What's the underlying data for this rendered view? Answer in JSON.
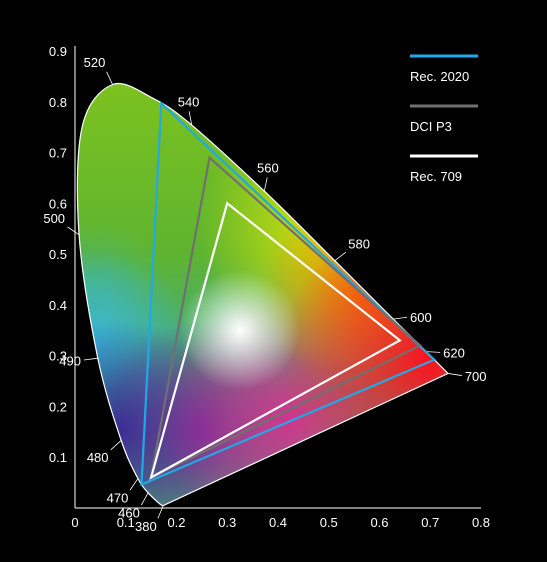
{
  "chart_data": {
    "type": "scatter",
    "title": "",
    "xlabel": "",
    "ylabel": "",
    "xlim": [
      0,
      0.8
    ],
    "ylim": [
      0,
      0.9
    ],
    "x_ticks": [
      "0",
      "0.1",
      "0.2",
      "0.3",
      "0.4",
      "0.5",
      "0.6",
      "0.7",
      "0.8"
    ],
    "y_ticks": [
      "0.1",
      "0.2",
      "0.3",
      "0.4",
      "0.5",
      "0.6",
      "0.7",
      "0.8",
      "0.9"
    ],
    "grid": false,
    "legend_position": "top-right",
    "spectral_locus": [
      [
        0.174,
        0.005
      ],
      [
        0.172,
        0.005
      ],
      [
        0.166,
        0.009
      ],
      [
        0.144,
        0.03
      ],
      [
        0.124,
        0.058
      ],
      [
        0.091,
        0.133
      ],
      [
        0.045,
        0.295
      ],
      [
        0.008,
        0.538
      ],
      [
        0.014,
        0.75
      ],
      [
        0.074,
        0.834
      ],
      [
        0.155,
        0.806
      ],
      [
        0.23,
        0.754
      ],
      [
        0.373,
        0.624
      ],
      [
        0.512,
        0.487
      ],
      [
        0.627,
        0.372
      ],
      [
        0.692,
        0.308
      ],
      [
        0.735,
        0.265
      ]
    ],
    "wavelength_labels": [
      {
        "label": "380",
        "x": 0.174,
        "y": 0.005
      },
      {
        "label": "460",
        "x": 0.144,
        "y": 0.03
      },
      {
        "label": "470",
        "x": 0.124,
        "y": 0.058
      },
      {
        "label": "480",
        "x": 0.091,
        "y": 0.133
      },
      {
        "label": "490",
        "x": 0.045,
        "y": 0.295
      },
      {
        "label": "500",
        "x": 0.008,
        "y": 0.538
      },
      {
        "label": "520",
        "x": 0.074,
        "y": 0.834
      },
      {
        "label": "540",
        "x": 0.23,
        "y": 0.754
      },
      {
        "label": "560",
        "x": 0.373,
        "y": 0.624
      },
      {
        "label": "580",
        "x": 0.512,
        "y": 0.487
      },
      {
        "label": "600",
        "x": 0.627,
        "y": 0.372
      },
      {
        "label": "620",
        "x": 0.692,
        "y": 0.308
      },
      {
        "label": "700",
        "x": 0.735,
        "y": 0.265
      }
    ],
    "series": [
      {
        "name": "Rec. 2020",
        "color": "#1fa9e6",
        "points": [
          [
            0.708,
            0.292
          ],
          [
            0.17,
            0.797
          ],
          [
            0.131,
            0.046
          ]
        ]
      },
      {
        "name": "DCI P3",
        "color": "#707070",
        "points": [
          [
            0.68,
            0.32
          ],
          [
            0.265,
            0.69
          ],
          [
            0.15,
            0.06
          ]
        ]
      },
      {
        "name": "Rec. 709",
        "color": "#ffffff",
        "points": [
          [
            0.64,
            0.33
          ],
          [
            0.3,
            0.6
          ],
          [
            0.15,
            0.06
          ]
        ]
      }
    ]
  }
}
